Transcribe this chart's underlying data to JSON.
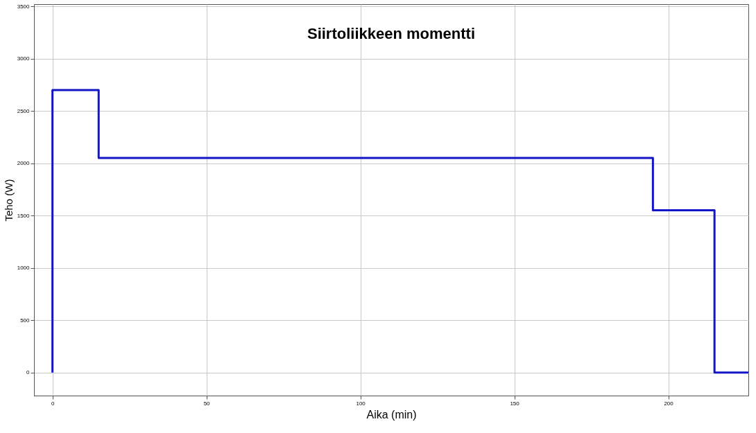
{
  "chart_data": {
    "type": "step",
    "title": "Siirtoliikkeen momentti",
    "xlabel": "Aika (min)",
    "ylabel": "Teho (W)",
    "x": [
      0,
      0,
      15,
      195,
      215,
      226
    ],
    "series": [
      {
        "color": "#1414c8",
        "values": [
          0,
          2700,
          2050,
          1550,
          0,
          0
        ]
      }
    ],
    "xlim": [
      -6,
      226
    ],
    "xticks": [
      0,
      50,
      100,
      150,
      200
    ],
    "ylim": [
      -220,
      3520
    ],
    "yticks": [
      0,
      500,
      1000,
      1500,
      2000,
      2500,
      3000,
      3500
    ],
    "grid": true,
    "marker": "none",
    "line_style": "solid"
  }
}
